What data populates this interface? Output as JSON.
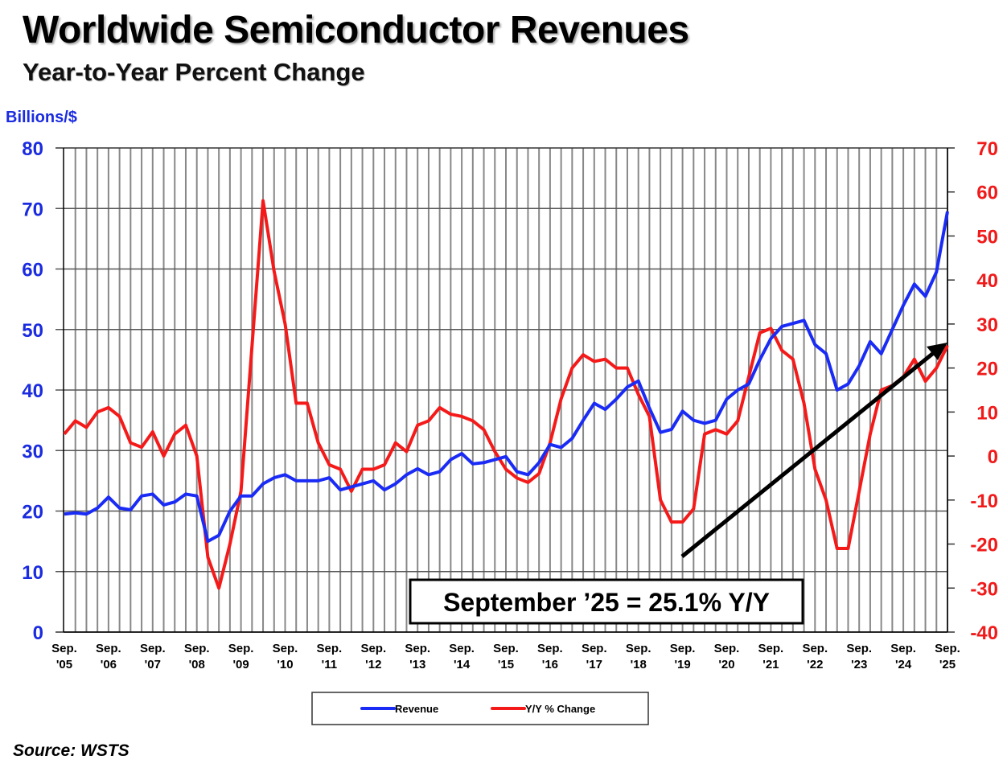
{
  "chart_data": {
    "type": "line",
    "title": "Worldwide Semiconductor Revenues",
    "subtitle": "Year-to-Year Percent Change",
    "ylabel": "Billions/$",
    "ylim": [
      0,
      80
    ],
    "y2lim": [
      -40,
      70
    ],
    "yticks": [
      0,
      10,
      20,
      30,
      40,
      50,
      60,
      70,
      80
    ],
    "y2ticks": [
      -40,
      -30,
      -20,
      -10,
      0,
      10,
      20,
      30,
      40,
      50,
      60,
      70
    ],
    "grid": true,
    "xticks": [
      [
        "Sep.",
        "'05"
      ],
      [
        "Sep.",
        "'06"
      ],
      [
        "Sep.",
        "'07"
      ],
      [
        "Sep.",
        "'08"
      ],
      [
        "Sep.",
        "'09"
      ],
      [
        "Sep.",
        "'10"
      ],
      [
        "Sep.",
        "'11"
      ],
      [
        "Sep.",
        "'12"
      ],
      [
        "Sep.",
        "'13"
      ],
      [
        "Sep.",
        "'14"
      ],
      [
        "Sep.",
        "'15"
      ],
      [
        "Sep.",
        "'16"
      ],
      [
        "Sep.",
        "'17"
      ],
      [
        "Sep.",
        "'18"
      ],
      [
        "Sep.",
        "'19"
      ],
      [
        "Sep.",
        "'20"
      ],
      [
        "Sep.",
        "'21"
      ],
      [
        "Sep.",
        "'22"
      ],
      [
        "Sep.",
        "'23"
      ],
      [
        "Sep.",
        "'24"
      ],
      [
        "Sep.",
        "'25"
      ]
    ],
    "x_start": "Sep 2005",
    "x_step": "quarter",
    "legend_position": "bottom",
    "series": [
      {
        "name": "Revenue",
        "axis": "left",
        "color": "#1a2bf5",
        "values": [
          19.5,
          19.7,
          19.5,
          20.5,
          22.3,
          20.5,
          20.2,
          22.5,
          22.8,
          21,
          21.5,
          22.8,
          22.5,
          15,
          16,
          20,
          22.5,
          22.5,
          24.5,
          25.5,
          26,
          25,
          25,
          25,
          25.5,
          23.5,
          24,
          24.5,
          25,
          23.5,
          24.5,
          26,
          27,
          26,
          26.5,
          28.5,
          29.5,
          27.8,
          28,
          28.5,
          29,
          26.5,
          26,
          28,
          31,
          30.5,
          32,
          35,
          37.8,
          36.8,
          38.5,
          40.5,
          41.5,
          37,
          33,
          33.5,
          36.5,
          35,
          34.5,
          35,
          38.5,
          40,
          41,
          45,
          48.5,
          50.5,
          51,
          51.5,
          47.5,
          46,
          40,
          41,
          44,
          48,
          46,
          50,
          54,
          57.5,
          55.5,
          59.5,
          69.5
        ]
      },
      {
        "name": "Y/Y % Change",
        "axis": "right",
        "color": "#f51a1a",
        "values": [
          5,
          8,
          6.5,
          10,
          11,
          9,
          3,
          2,
          5.5,
          0,
          5,
          7,
          0,
          -23,
          -30,
          -20,
          -8,
          25,
          58,
          42,
          30,
          12,
          12,
          3,
          -2,
          -3,
          -8,
          -3,
          -3,
          -2,
          3,
          1,
          7,
          8,
          11,
          9.5,
          9,
          8,
          6,
          1,
          -3,
          -5,
          -6,
          -4,
          3,
          13,
          20,
          23,
          21.5,
          22,
          20,
          20,
          14,
          9,
          -10,
          -15,
          -15,
          -12,
          5,
          6,
          5,
          8,
          18,
          28,
          29,
          24,
          22,
          12,
          -3,
          -10,
          -21,
          -21,
          -8,
          5,
          15,
          16,
          18,
          22,
          17,
          20,
          25.1
        ]
      }
    ],
    "annotations": [
      {
        "text": "September ’25 = 25.1% Y/Y"
      }
    ]
  },
  "source": "Source: WSTS"
}
